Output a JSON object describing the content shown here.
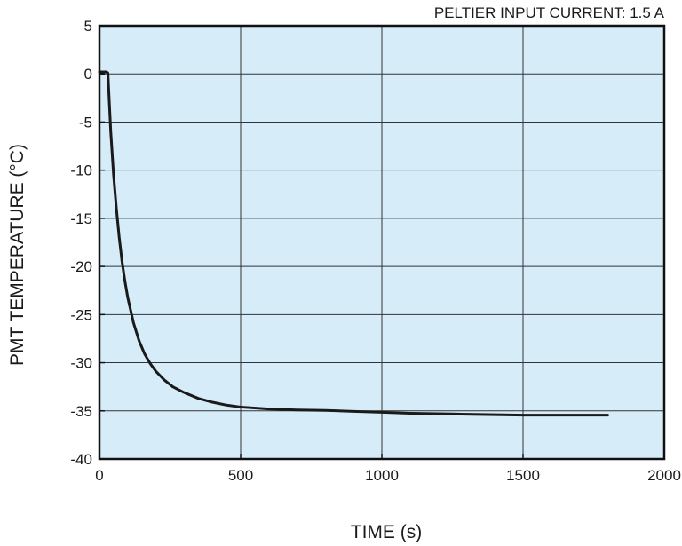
{
  "chart_data": {
    "type": "line",
    "title": "",
    "annotation": "PELTIER INPUT CURRENT: 1.5 A",
    "xlabel": "TIME (s)",
    "ylabel": "PMT TEMPERATURE (°C)",
    "xlim": [
      0,
      2000
    ],
    "ylim": [
      -40,
      5
    ],
    "xticks": [
      0,
      500,
      1000,
      1500,
      2000
    ],
    "yticks": [
      5,
      0,
      -5,
      -10,
      -15,
      -20,
      -25,
      -30,
      -35,
      -40
    ],
    "xtick_labels": [
      "0",
      "500",
      "1000",
      "1500",
      "2000"
    ],
    "ytick_labels": [
      "5",
      "0",
      "-5",
      "-10",
      "-15",
      "-20",
      "-25",
      "-30",
      "-35",
      "-40"
    ],
    "grid": true,
    "colors": {
      "plot_background": "#d6ecf8",
      "line": "#1a1a1a",
      "grid": "#333333"
    },
    "series": [
      {
        "x": [
          0,
          10,
          20,
          25,
          30,
          35,
          40,
          50,
          60,
          70,
          80,
          90,
          100,
          120,
          140,
          160,
          180,
          200,
          230,
          260,
          300,
          350,
          400,
          450,
          500,
          600,
          700,
          800,
          900,
          1000,
          1100,
          1200,
          1300,
          1400,
          1500,
          1600,
          1700,
          1800
        ],
        "y": [
          0.2,
          0.2,
          0.2,
          0.2,
          0.1,
          -3,
          -6,
          -10.5,
          -14,
          -17,
          -19.5,
          -21.5,
          -23.2,
          -25.8,
          -27.7,
          -29.1,
          -30.1,
          -30.9,
          -31.8,
          -32.5,
          -33.1,
          -33.7,
          -34.1,
          -34.4,
          -34.6,
          -34.8,
          -34.9,
          -34.95,
          -35.05,
          -35.15,
          -35.25,
          -35.3,
          -35.35,
          -35.4,
          -35.45,
          -35.45,
          -35.45,
          -35.45
        ]
      }
    ]
  }
}
